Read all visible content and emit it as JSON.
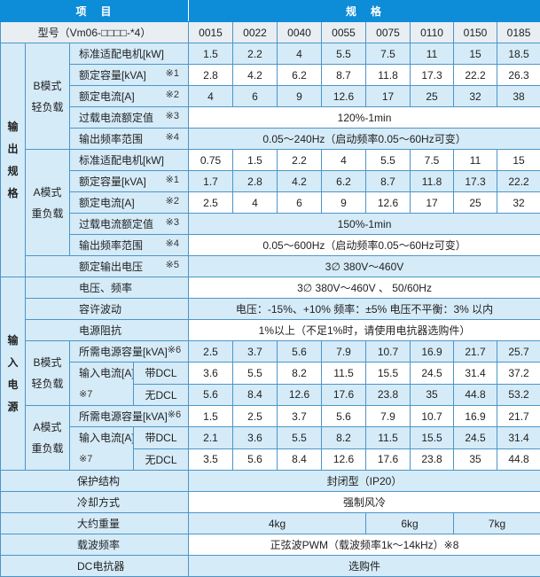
{
  "header": {
    "item": "项　目",
    "spec": "规　格"
  },
  "model": {
    "label": "型号（Vm06-□□□□-*4）",
    "codes": [
      "0015",
      "0022",
      "0040",
      "0055",
      "0075",
      "0110",
      "0150",
      "0185"
    ]
  },
  "output": {
    "group_label": "输出规格",
    "b_mode": {
      "line1": "B模式",
      "line2": "轻负载",
      "rows": [
        {
          "label": "标准适配电机[kW]",
          "note": "",
          "values": [
            "1.5",
            "2.2",
            "4",
            "5.5",
            "7.5",
            "11",
            "15",
            "18.5"
          ]
        },
        {
          "label": "额定容量[kVA]",
          "note": "※1",
          "values": [
            "2.8",
            "4.2",
            "6.2",
            "8.7",
            "11.8",
            "17.3",
            "22.2",
            "26.3"
          ]
        },
        {
          "label": "额定电流[A]",
          "note": "※2",
          "values": [
            "4",
            "6",
            "9",
            "12.6",
            "17",
            "25",
            "32",
            "38"
          ]
        },
        {
          "label": "过载电流额定值",
          "note": "※3",
          "value": "120%-1min"
        },
        {
          "label": "输出频率范围",
          "note": "※4",
          "value": "0.05～240Hz（启动频率0.05～60Hz可变）"
        }
      ]
    },
    "a_mode": {
      "line1": "A模式",
      "line2": "重负载",
      "rows": [
        {
          "label": "标准适配电机[kW]",
          "note": "",
          "values": [
            "0.75",
            "1.5",
            "2.2",
            "4",
            "5.5",
            "7.5",
            "11",
            "15"
          ]
        },
        {
          "label": "额定容量[kVA]",
          "note": "※1",
          "values": [
            "1.7",
            "2.8",
            "4.2",
            "6.2",
            "8.7",
            "11.8",
            "17.3",
            "22.2"
          ]
        },
        {
          "label": "额定电流[A]",
          "note": "※2",
          "values": [
            "2.5",
            "4",
            "6",
            "9",
            "12.6",
            "17",
            "25",
            "32"
          ]
        },
        {
          "label": "过载电流额定值",
          "note": "※3",
          "value": "150%-1min"
        },
        {
          "label": "输出频率范围",
          "note": "※4",
          "value": "0.05～600Hz（启动频率0.05～60Hz可变）"
        }
      ]
    },
    "rated_voltage": {
      "label": "额定输出电压",
      "note": "※5",
      "value": "3∅ 380V～460V"
    }
  },
  "input": {
    "group_label": "输入电源",
    "voltage_freq": {
      "label": "电压、频率",
      "value": "3∅ 380V～460V 、 50/60Hz"
    },
    "tolerance": {
      "label": "容许波动",
      "value": "电压：-15%、+10%  频率：±5% 电压不平衡：3% 以内"
    },
    "impedance": {
      "label": "电源阻抗",
      "value": "1%以上（不足1%时，请使用电抗器选购件）"
    },
    "b_mode": {
      "line1": "B模式",
      "line2": "轻负载",
      "capacity": {
        "label": "所需电源容量[kVA]",
        "note": "※6",
        "values": [
          "2.5",
          "3.7",
          "5.6",
          "7.9",
          "10.7",
          "16.9",
          "21.7",
          "25.7"
        ]
      },
      "current_label": "输入电流[A]",
      "current_note": "※7",
      "with_dcl": {
        "label": "带DCL",
        "values": [
          "3.6",
          "5.5",
          "8.2",
          "11.5",
          "15.5",
          "24.5",
          "31.4",
          "37.2"
        ]
      },
      "without_dcl": {
        "label": "无DCL",
        "values": [
          "5.6",
          "8.4",
          "12.6",
          "17.6",
          "23.8",
          "35",
          "44.8",
          "53.2"
        ]
      }
    },
    "a_mode": {
      "line1": "A模式",
      "line2": "重负载",
      "capacity": {
        "label": "所需电源容量[kVA]",
        "note": "※6",
        "values": [
          "1.5",
          "2.5",
          "3.7",
          "5.6",
          "7.9",
          "10.7",
          "16.9",
          "21.7"
        ]
      },
      "current_label": "输入电流[A]",
      "current_note": "※7",
      "with_dcl": {
        "label": "带DCL",
        "values": [
          "2.1",
          "3.6",
          "5.5",
          "8.2",
          "11.5",
          "15.5",
          "24.5",
          "31.4"
        ]
      },
      "without_dcl": {
        "label": "无DCL",
        "values": [
          "3.5",
          "5.6",
          "8.4",
          "12.6",
          "17.6",
          "23.8",
          "35",
          "44.8"
        ]
      }
    }
  },
  "general": {
    "protection": {
      "label": "保护结构",
      "value": "封闭型（IP20）"
    },
    "cooling": {
      "label": "冷却方式",
      "value": "强制风冷"
    },
    "weight": {
      "label": "大约重量",
      "values": [
        "4kg",
        "6kg",
        "7kg"
      ]
    },
    "carrier": {
      "label": "载波频率",
      "value": "正弦波PWM（载波频率1k～14kHz）※8"
    },
    "dc_reactor": {
      "label": "DC电抗器",
      "value": "选购件"
    }
  }
}
